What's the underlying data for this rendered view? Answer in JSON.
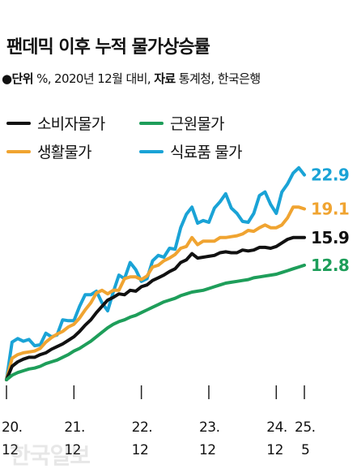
{
  "title": "팬데믹 이후 누적 물가상승률",
  "subtitle": {
    "unit_label": "●단위",
    "unit_text": "%, 2020년 12월 대비,",
    "source_label": "자료",
    "source_text": "통계청, 한국은행"
  },
  "watermark": "한국일보",
  "colors": {
    "cpi": "#111111",
    "core": "#1e9e5a",
    "living": "#f0a431",
    "food": "#1aa3d6"
  },
  "chart_data": {
    "type": "line",
    "title": "팬데믹 이후 누적 물가상승률",
    "ylabel": "%",
    "xlim": [
      0,
      53
    ],
    "ylim": [
      0,
      24.5
    ],
    "x_ticks": [
      {
        "x": 0,
        "line1": "20.",
        "line2": "12"
      },
      {
        "x": 12,
        "line1": "21.",
        "line2": "12"
      },
      {
        "x": 24,
        "line1": "22.",
        "line2": "12"
      },
      {
        "x": 36,
        "line1": "23.",
        "line2": "12"
      },
      {
        "x": 48,
        "line1": "24.",
        "line2": "12"
      },
      {
        "x": 53,
        "line1": "25.",
        "line2": "5"
      }
    ],
    "series": [
      {
        "key": "food",
        "name": "식료품 물가",
        "end_label": "22.9",
        "values": [
          0,
          4.2,
          4.6,
          4.3,
          4.5,
          3.8,
          3.9,
          5.2,
          4.8,
          5.0,
          6.7,
          6.6,
          6.6,
          8.2,
          9.5,
          9.5,
          9.9,
          8.6,
          7.7,
          9.8,
          11.7,
          11.3,
          13.1,
          12.3,
          11.0,
          11.3,
          13.3,
          13.9,
          13.7,
          14.7,
          14.6,
          17.0,
          18.5,
          19.3,
          17.5,
          17.8,
          17.6,
          19.2,
          19.9,
          20.8,
          19.2,
          18.6,
          17.7,
          17.6,
          18.6,
          20.6,
          21.0,
          19.6,
          18.6,
          21.0,
          21.9,
          23.1,
          23.7,
          22.9
        ]
      },
      {
        "key": "living",
        "name": "생활물가",
        "end_label": "19.1",
        "values": [
          0,
          2.4,
          2.8,
          3.0,
          3.1,
          3.2,
          3.5,
          4.2,
          4.7,
          5.1,
          5.4,
          5.9,
          6.2,
          6.9,
          7.8,
          8.6,
          9.7,
          10.0,
          9.6,
          10.0,
          10.0,
          11.3,
          11.5,
          11.5,
          11.2,
          11.6,
          12.6,
          12.8,
          13.3,
          13.6,
          14.0,
          14.7,
          14.9,
          15.9,
          15.1,
          15.5,
          15.5,
          15.5,
          15.9,
          15.9,
          16.0,
          16.1,
          16.3,
          16.7,
          16.6,
          17.0,
          17.3,
          17.0,
          17.0,
          17.3,
          18.1,
          19.3,
          19.3,
          19.1
        ]
      },
      {
        "key": "cpi",
        "name": "소비자물가",
        "end_label": "15.9",
        "values": [
          0,
          1.5,
          2.0,
          2.3,
          2.5,
          2.5,
          2.8,
          3.0,
          3.4,
          3.7,
          4.0,
          4.4,
          4.8,
          5.4,
          6.1,
          6.7,
          7.5,
          8.2,
          8.9,
          9.2,
          9.6,
          9.5,
          10.0,
          9.9,
          10.4,
          10.6,
          11.1,
          11.4,
          11.7,
          12.1,
          12.4,
          13.1,
          13.4,
          14.1,
          13.6,
          13.7,
          13.8,
          13.9,
          14.2,
          14.3,
          14.2,
          14.2,
          14.5,
          14.4,
          14.5,
          14.8,
          14.8,
          14.7,
          14.9,
          15.3,
          15.7,
          15.9,
          15.9,
          15.9
        ]
      },
      {
        "key": "core",
        "name": "근원물가",
        "end_label": "12.8",
        "values": [
          0,
          0.5,
          0.8,
          1.0,
          1.2,
          1.3,
          1.5,
          1.8,
          2.0,
          2.2,
          2.5,
          2.8,
          3.2,
          3.5,
          3.9,
          4.3,
          4.8,
          5.3,
          5.8,
          6.2,
          6.5,
          6.7,
          7.0,
          7.2,
          7.5,
          7.8,
          8.1,
          8.4,
          8.7,
          8.9,
          9.1,
          9.4,
          9.6,
          9.8,
          9.9,
          10.0,
          10.2,
          10.4,
          10.6,
          10.8,
          10.9,
          11.0,
          11.1,
          11.2,
          11.4,
          11.5,
          11.6,
          11.7,
          11.8,
          12.0,
          12.2,
          12.4,
          12.6,
          12.8
        ]
      }
    ],
    "legend": [
      {
        "key": "cpi",
        "label": "소비자물가"
      },
      {
        "key": "core",
        "label": "근원물가"
      },
      {
        "key": "living",
        "label": "생활물가"
      },
      {
        "key": "food",
        "label": "식료품 물가"
      }
    ],
    "grid": false,
    "legend_position": "top-left"
  }
}
